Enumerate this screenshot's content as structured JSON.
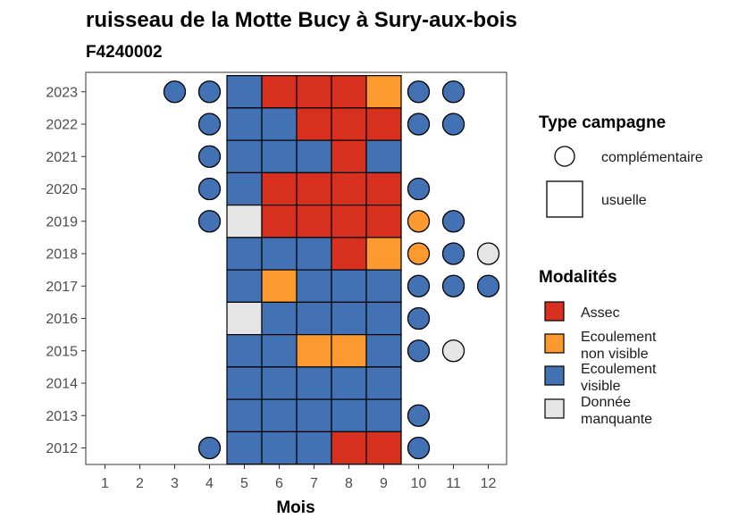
{
  "chart_data": {
    "type": "heatmap",
    "title": "ruisseau de la Motte Bucy à Sury-aux-bois",
    "subtitle": "F4240002",
    "xlabel": "Mois",
    "ylabel": "",
    "x": [
      "1",
      "2",
      "3",
      "4",
      "5",
      "6",
      "7",
      "8",
      "9",
      "10",
      "11",
      "12"
    ],
    "y": [
      "2012",
      "2013",
      "2014",
      "2015",
      "2016",
      "2017",
      "2018",
      "2019",
      "2020",
      "2021",
      "2022",
      "2023"
    ],
    "grid": false,
    "colors": {
      "Assec": "#d7301f",
      "Ecoulement non visible": "#fd9a2f",
      "Ecoulement visible": "#4372b4",
      "Donnée manquante": "#e5e5e5"
    },
    "legends": {
      "type_campagne": {
        "title": "Type campagne",
        "placement": "right-top",
        "items": [
          {
            "key": "complementaire",
            "shape": "circle",
            "lines": [
              "complémentaire"
            ]
          },
          {
            "key": "usuelle",
            "shape": "square",
            "lines": [
              "usuelle"
            ]
          }
        ]
      },
      "modalites": {
        "title": "Modalités",
        "placement": "right-bottom",
        "items": [
          {
            "key": "Assec",
            "lines": [
              "Assec"
            ]
          },
          {
            "key": "Ecoulement non visible",
            "lines": [
              "Ecoulement",
              "non visible"
            ]
          },
          {
            "key": "Ecoulement visible",
            "lines": [
              "Ecoulement",
              "visible"
            ]
          },
          {
            "key": "Donnée manquante",
            "lines": [
              "Donnée",
              "manquante"
            ]
          }
        ]
      }
    },
    "usuelle": [
      {
        "year": "2023",
        "values": [
          "Ecoulement visible",
          "Assec",
          "Assec",
          "Assec",
          "Ecoulement non visible"
        ]
      },
      {
        "year": "2022",
        "values": [
          "Ecoulement visible",
          "Ecoulement visible",
          "Assec",
          "Assec",
          "Assec"
        ]
      },
      {
        "year": "2021",
        "values": [
          "Ecoulement visible",
          "Ecoulement visible",
          "Ecoulement visible",
          "Assec",
          "Ecoulement visible"
        ]
      },
      {
        "year": "2020",
        "values": [
          "Ecoulement visible",
          "Assec",
          "Assec",
          "Assec",
          "Assec"
        ]
      },
      {
        "year": "2019",
        "values": [
          "Donnée manquante",
          "Assec",
          "Assec",
          "Assec",
          "Assec"
        ]
      },
      {
        "year": "2018",
        "values": [
          "Ecoulement visible",
          "Ecoulement visible",
          "Ecoulement visible",
          "Assec",
          "Ecoulement non visible"
        ]
      },
      {
        "year": "2017",
        "values": [
          "Ecoulement visible",
          "Ecoulement non visible",
          "Ecoulement visible",
          "Ecoulement visible",
          "Ecoulement visible"
        ]
      },
      {
        "year": "2016",
        "values": [
          "Donnée manquante",
          "Ecoulement visible",
          "Ecoulement visible",
          "Ecoulement visible",
          "Ecoulement visible"
        ]
      },
      {
        "year": "2015",
        "values": [
          "Ecoulement visible",
          "Ecoulement visible",
          "Ecoulement non visible",
          "Ecoulement non visible",
          "Ecoulement visible"
        ]
      },
      {
        "year": "2014",
        "values": [
          "Ecoulement visible",
          "Ecoulement visible",
          "Ecoulement visible",
          "Ecoulement visible",
          "Ecoulement visible"
        ]
      },
      {
        "year": "2013",
        "values": [
          "Ecoulement visible",
          "Ecoulement visible",
          "Ecoulement visible",
          "Ecoulement visible",
          "Ecoulement visible"
        ]
      },
      {
        "year": "2012",
        "values": [
          "Ecoulement visible",
          "Ecoulement visible",
          "Ecoulement visible",
          "Assec",
          "Assec"
        ]
      }
    ],
    "usuelle_months": [
      "5",
      "6",
      "7",
      "8",
      "9"
    ],
    "complementaire": [
      {
        "year": "2023",
        "month": "3",
        "value": "Ecoulement visible"
      },
      {
        "year": "2023",
        "month": "4",
        "value": "Ecoulement visible"
      },
      {
        "year": "2023",
        "month": "10",
        "value": "Ecoulement visible"
      },
      {
        "year": "2023",
        "month": "11",
        "value": "Ecoulement visible"
      },
      {
        "year": "2022",
        "month": "4",
        "value": "Ecoulement visible"
      },
      {
        "year": "2022",
        "month": "10",
        "value": "Ecoulement visible"
      },
      {
        "year": "2022",
        "month": "11",
        "value": "Ecoulement visible"
      },
      {
        "year": "2021",
        "month": "4",
        "value": "Ecoulement visible"
      },
      {
        "year": "2020",
        "month": "4",
        "value": "Ecoulement visible"
      },
      {
        "year": "2020",
        "month": "10",
        "value": "Ecoulement visible"
      },
      {
        "year": "2019",
        "month": "4",
        "value": "Ecoulement visible"
      },
      {
        "year": "2019",
        "month": "10",
        "value": "Ecoulement non visible"
      },
      {
        "year": "2019",
        "month": "11",
        "value": "Ecoulement visible"
      },
      {
        "year": "2018",
        "month": "10",
        "value": "Ecoulement non visible"
      },
      {
        "year": "2018",
        "month": "11",
        "value": "Ecoulement visible"
      },
      {
        "year": "2018",
        "month": "12",
        "value": "Donnée manquante"
      },
      {
        "year": "2017",
        "month": "10",
        "value": "Ecoulement visible"
      },
      {
        "year": "2017",
        "month": "11",
        "value": "Ecoulement visible"
      },
      {
        "year": "2017",
        "month": "12",
        "value": "Ecoulement visible"
      },
      {
        "year": "2016",
        "month": "10",
        "value": "Ecoulement visible"
      },
      {
        "year": "2015",
        "month": "10",
        "value": "Ecoulement visible"
      },
      {
        "year": "2015",
        "month": "11",
        "value": "Donnée manquante"
      },
      {
        "year": "2013",
        "month": "10",
        "value": "Ecoulement visible"
      },
      {
        "year": "2012",
        "month": "4",
        "value": "Ecoulement visible"
      },
      {
        "year": "2012",
        "month": "10",
        "value": "Ecoulement visible"
      }
    ]
  }
}
